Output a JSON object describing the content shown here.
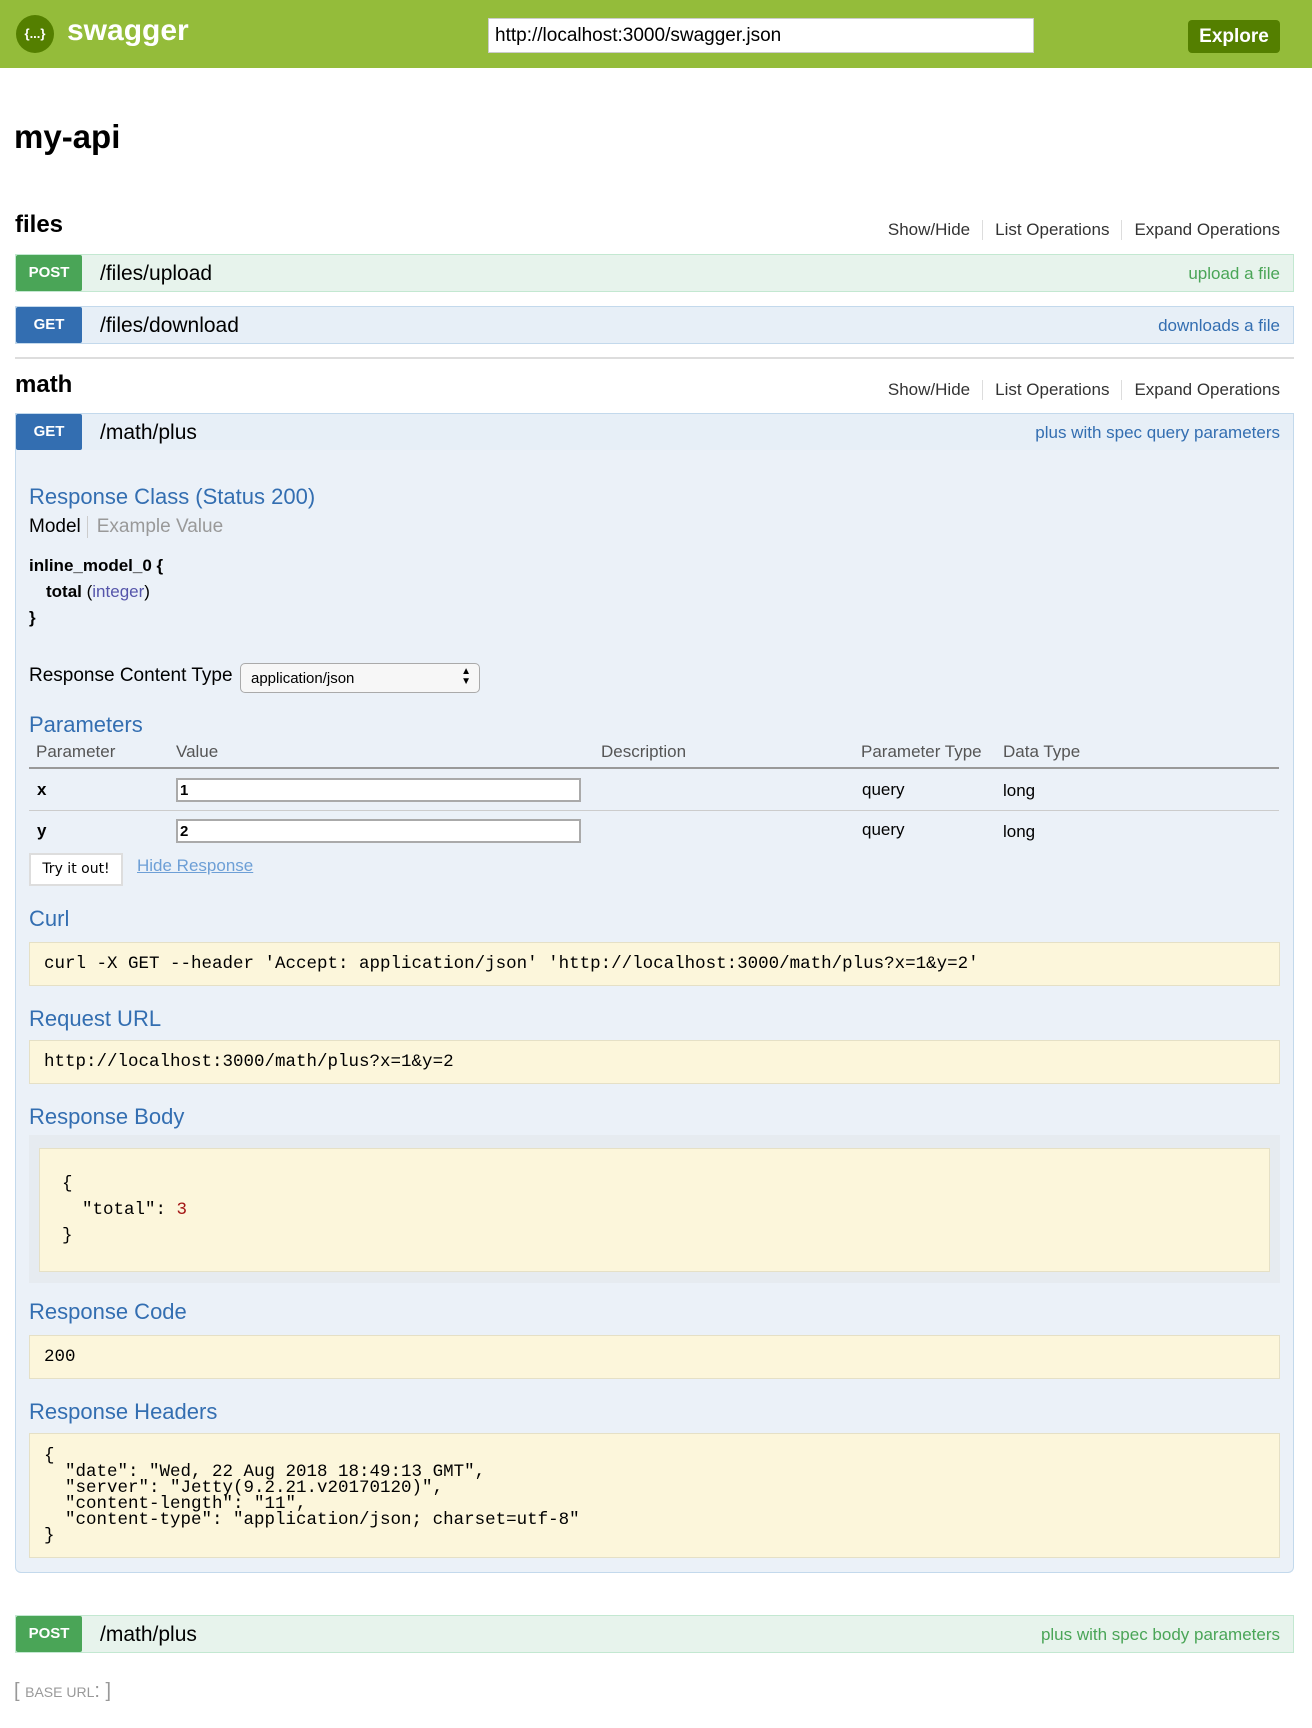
{
  "header": {
    "brand": "swagger",
    "logo_glyph": "{...}",
    "url": "http://localhost:3000/swagger.json",
    "explore_label": "Explore"
  },
  "api_title": "my-api",
  "section_links": {
    "show_hide": "Show/Hide",
    "list_operations": "List Operations",
    "expand_operations": "Expand Operations"
  },
  "sections": [
    {
      "name": "files",
      "operations": [
        {
          "method": "POST",
          "path": "/files/upload",
          "summary": "upload a file"
        },
        {
          "method": "GET",
          "path": "/files/download",
          "summary": "downloads a file"
        }
      ]
    },
    {
      "name": "math",
      "operations": [
        {
          "method": "GET",
          "path": "/math/plus",
          "summary": "plus with spec query parameters"
        },
        {
          "method": "POST",
          "path": "/math/plus",
          "summary": "plus with spec body parameters"
        }
      ]
    }
  ],
  "expanded": {
    "response_class_title": "Response Class (Status 200)",
    "model_tab": "Model",
    "example_tab": "Example Value",
    "model_name": "inline_model_0 {",
    "model_prop": "total",
    "model_type": "integer",
    "model_close": "}",
    "content_type_label": "Response Content Type",
    "content_type_value": "application/json",
    "parameters_title": "Parameters",
    "columns": [
      "Parameter",
      "Value",
      "Description",
      "Parameter Type",
      "Data Type"
    ],
    "params": [
      {
        "name": "x",
        "value": "1",
        "description": "",
        "param_type": "query",
        "data_type": "long"
      },
      {
        "name": "y",
        "value": "2",
        "description": "",
        "param_type": "query",
        "data_type": "long"
      }
    ],
    "try_label": "Try it out!",
    "hide_label": "Hide Response",
    "curl_title": "Curl",
    "curl": "curl -X GET --header 'Accept: application/json' 'http://localhost:3000/math/plus?x=1&y=2'",
    "request_url_title": "Request URL",
    "request_url": "http://localhost:3000/math/plus?x=1&y=2",
    "response_body_title": "Response Body",
    "body_open": "{",
    "body_key": "\"total\": ",
    "body_value": "3",
    "body_close": "}",
    "response_code_title": "Response Code",
    "response_code": "200",
    "response_headers_title": "Response Headers",
    "headers_text": "{\n  \"date\": \"Wed, 22 Aug 2018 18:49:13 GMT\",\n  \"server\": \"Jetty(9.2.21.v20170120)\",\n  \"content-length\": \"11\",\n  \"content-type\": \"application/json; charset=utf-8\"\n}"
  },
  "footer": {
    "base_url_label": "BASE URL",
    "base_url_value": ""
  }
}
